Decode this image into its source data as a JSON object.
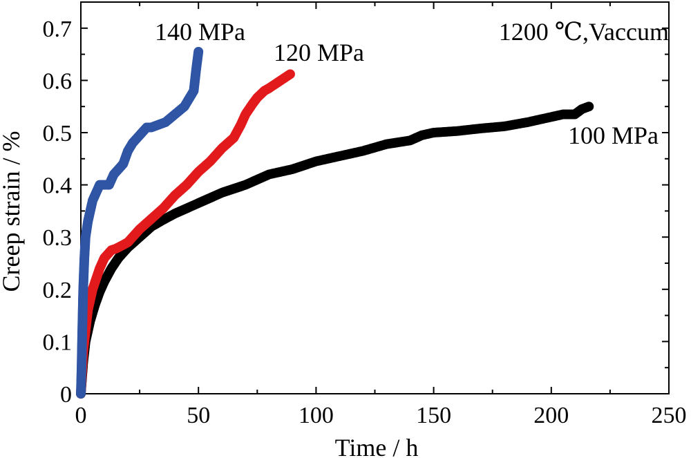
{
  "chart_data": {
    "type": "scatter",
    "title": "",
    "xlabel": "Time / h",
    "ylabel": "Creep strain / %",
    "xlim": [
      0,
      250
    ],
    "ylim": [
      0,
      0.75
    ],
    "x_ticks": [
      "0",
      "50",
      "100",
      "150",
      "200",
      "250"
    ],
    "y_ticks": [
      "0",
      "0.1",
      "0.2",
      "0.3",
      "0.4",
      "0.5",
      "0.6",
      "0.7"
    ],
    "grid": false,
    "condition_label": "1200 ℃,Vaccum",
    "series": [
      {
        "name": "100 MPa",
        "color": "#000000",
        "x": [
          0,
          1,
          2,
          4,
          6,
          8,
          10,
          13,
          16,
          20,
          25,
          30,
          35,
          40,
          50,
          60,
          70,
          80,
          90,
          100,
          110,
          120,
          130,
          140,
          145,
          150,
          160,
          170,
          180,
          190,
          200,
          205,
          210,
          213,
          216
        ],
        "y": [
          0,
          0.06,
          0.1,
          0.14,
          0.17,
          0.195,
          0.215,
          0.24,
          0.26,
          0.28,
          0.3,
          0.32,
          0.333,
          0.345,
          0.365,
          0.385,
          0.4,
          0.42,
          0.43,
          0.445,
          0.455,
          0.465,
          0.478,
          0.485,
          0.495,
          0.5,
          0.503,
          0.508,
          0.512,
          0.52,
          0.53,
          0.535,
          0.535,
          0.545,
          0.55
        ]
      },
      {
        "name": "120 MPa",
        "color": "#e31a1c",
        "x": [
          0,
          1,
          2,
          3,
          5,
          8,
          10,
          13,
          15,
          18,
          20,
          25,
          30,
          35,
          40,
          45,
          50,
          55,
          60,
          65,
          68,
          70,
          73,
          75,
          78,
          80,
          85,
          89
        ],
        "y": [
          0,
          0.08,
          0.12,
          0.16,
          0.2,
          0.24,
          0.26,
          0.275,
          0.278,
          0.285,
          0.29,
          0.315,
          0.335,
          0.355,
          0.38,
          0.4,
          0.425,
          0.445,
          0.47,
          0.49,
          0.515,
          0.535,
          0.555,
          0.567,
          0.58,
          0.585,
          0.6,
          0.612
        ]
      },
      {
        "name": "140 MPa",
        "color": "#2f55a4",
        "x": [
          0,
          0.3,
          0.6,
          1,
          1.5,
          2,
          3,
          4,
          5,
          6,
          7,
          8,
          10,
          12,
          14,
          16,
          18,
          20,
          22,
          24,
          26,
          28,
          30,
          33,
          36,
          40,
          44,
          46,
          48,
          49,
          50
        ],
        "y": [
          0,
          0.05,
          0.12,
          0.2,
          0.26,
          0.3,
          0.33,
          0.35,
          0.37,
          0.38,
          0.39,
          0.4,
          0.4,
          0.4,
          0.42,
          0.43,
          0.44,
          0.465,
          0.48,
          0.49,
          0.5,
          0.51,
          0.51,
          0.515,
          0.52,
          0.535,
          0.55,
          0.565,
          0.58,
          0.62,
          0.655
        ]
      }
    ]
  }
}
